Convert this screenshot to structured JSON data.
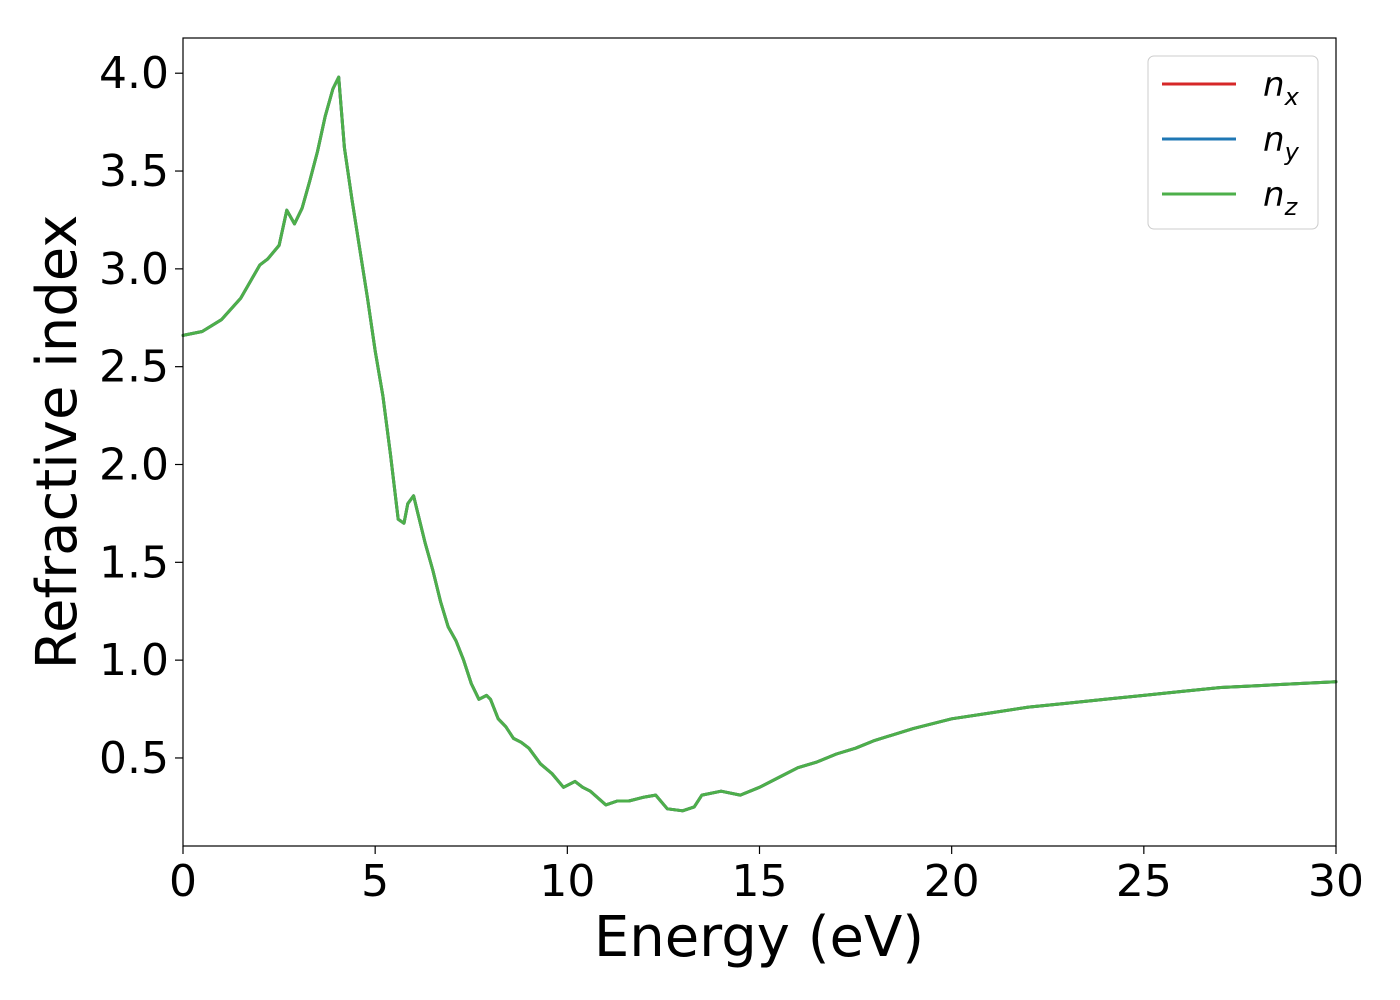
{
  "chart_data": {
    "type": "line",
    "xlabel": "Energy (eV)",
    "ylabel": "Refractive index",
    "xlim": [
      0,
      30
    ],
    "ylim": [
      0.05,
      4.18
    ],
    "xticks": [
      0,
      5,
      10,
      15,
      20,
      25,
      30
    ],
    "xtick_labels": [
      "0",
      "5",
      "10",
      "15",
      "20",
      "25",
      "30"
    ],
    "yticks": [
      0.5,
      1.0,
      1.5,
      2.0,
      2.5,
      3.0,
      3.5,
      4.0
    ],
    "ytick_labels": [
      "0.5",
      "1.0",
      "1.5",
      "2.0",
      "2.5",
      "3.0",
      "3.5",
      "4.0"
    ],
    "grid": false,
    "legend_position": "top-right",
    "x": [
      0,
      0.5,
      1.0,
      1.5,
      2.0,
      2.2,
      2.5,
      2.7,
      2.9,
      3.1,
      3.3,
      3.5,
      3.7,
      3.9,
      4.05,
      4.2,
      4.4,
      4.6,
      4.8,
      5.0,
      5.2,
      5.4,
      5.6,
      5.75,
      5.85,
      6.0,
      6.1,
      6.3,
      6.5,
      6.7,
      6.9,
      7.1,
      7.3,
      7.5,
      7.7,
      7.9,
      8.0,
      8.2,
      8.4,
      8.6,
      8.8,
      9.0,
      9.3,
      9.6,
      9.9,
      10.2,
      10.4,
      10.6,
      11.0,
      11.3,
      11.6,
      12.0,
      12.3,
      12.6,
      13.0,
      13.3,
      13.5,
      14.0,
      14.5,
      15.0,
      15.5,
      16.0,
      16.5,
      17.0,
      17.5,
      18.0,
      19.0,
      20.0,
      21.0,
      22.0,
      23.0,
      24.0,
      25.0,
      26.0,
      27.0,
      28.0,
      29.0,
      30.0
    ],
    "series": [
      {
        "name": "n_x",
        "color": "#d62728",
        "values": [
          2.66,
          2.68,
          2.74,
          2.85,
          3.02,
          3.05,
          3.12,
          3.3,
          3.23,
          3.31,
          3.45,
          3.6,
          3.78,
          3.92,
          3.98,
          3.62,
          3.35,
          3.1,
          2.85,
          2.58,
          2.35,
          2.05,
          1.72,
          1.7,
          1.8,
          1.84,
          1.76,
          1.6,
          1.46,
          1.3,
          1.17,
          1.1,
          1.0,
          0.88,
          0.8,
          0.82,
          0.8,
          0.7,
          0.66,
          0.6,
          0.58,
          0.55,
          0.47,
          0.42,
          0.35,
          0.38,
          0.35,
          0.33,
          0.26,
          0.28,
          0.28,
          0.3,
          0.31,
          0.24,
          0.23,
          0.25,
          0.31,
          0.33,
          0.31,
          0.35,
          0.4,
          0.45,
          0.48,
          0.52,
          0.55,
          0.59,
          0.65,
          0.7,
          0.73,
          0.76,
          0.78,
          0.8,
          0.82,
          0.84,
          0.86,
          0.87,
          0.88,
          0.89
        ]
      },
      {
        "name": "n_y",
        "color": "#1f77b4",
        "values": [
          2.66,
          2.68,
          2.74,
          2.85,
          3.02,
          3.05,
          3.12,
          3.3,
          3.23,
          3.31,
          3.45,
          3.6,
          3.78,
          3.92,
          3.98,
          3.62,
          3.35,
          3.1,
          2.85,
          2.58,
          2.35,
          2.05,
          1.72,
          1.7,
          1.8,
          1.84,
          1.76,
          1.6,
          1.46,
          1.3,
          1.17,
          1.1,
          1.0,
          0.88,
          0.8,
          0.82,
          0.8,
          0.7,
          0.66,
          0.6,
          0.58,
          0.55,
          0.47,
          0.42,
          0.35,
          0.38,
          0.35,
          0.33,
          0.26,
          0.28,
          0.28,
          0.3,
          0.31,
          0.24,
          0.23,
          0.25,
          0.31,
          0.33,
          0.31,
          0.35,
          0.4,
          0.45,
          0.48,
          0.52,
          0.55,
          0.59,
          0.65,
          0.7,
          0.73,
          0.76,
          0.78,
          0.8,
          0.82,
          0.84,
          0.86,
          0.87,
          0.88,
          0.89
        ]
      },
      {
        "name": "n_z",
        "color": "#4daf4a",
        "values": [
          2.66,
          2.68,
          2.74,
          2.85,
          3.02,
          3.05,
          3.12,
          3.3,
          3.23,
          3.31,
          3.45,
          3.6,
          3.78,
          3.92,
          3.98,
          3.62,
          3.35,
          3.1,
          2.85,
          2.58,
          2.35,
          2.05,
          1.72,
          1.7,
          1.8,
          1.84,
          1.76,
          1.6,
          1.46,
          1.3,
          1.17,
          1.1,
          1.0,
          0.88,
          0.8,
          0.82,
          0.8,
          0.7,
          0.66,
          0.6,
          0.58,
          0.55,
          0.47,
          0.42,
          0.35,
          0.38,
          0.35,
          0.33,
          0.26,
          0.28,
          0.28,
          0.3,
          0.31,
          0.24,
          0.23,
          0.25,
          0.31,
          0.33,
          0.31,
          0.35,
          0.4,
          0.45,
          0.48,
          0.52,
          0.55,
          0.59,
          0.65,
          0.7,
          0.73,
          0.76,
          0.78,
          0.8,
          0.82,
          0.84,
          0.86,
          0.87,
          0.88,
          0.89
        ]
      }
    ],
    "legend": [
      {
        "base": "n",
        "sub": "x",
        "color": "#d62728"
      },
      {
        "base": "n",
        "sub": "y",
        "color": "#1f77b4"
      },
      {
        "base": "n",
        "sub": "z",
        "color": "#4daf4a"
      }
    ]
  }
}
